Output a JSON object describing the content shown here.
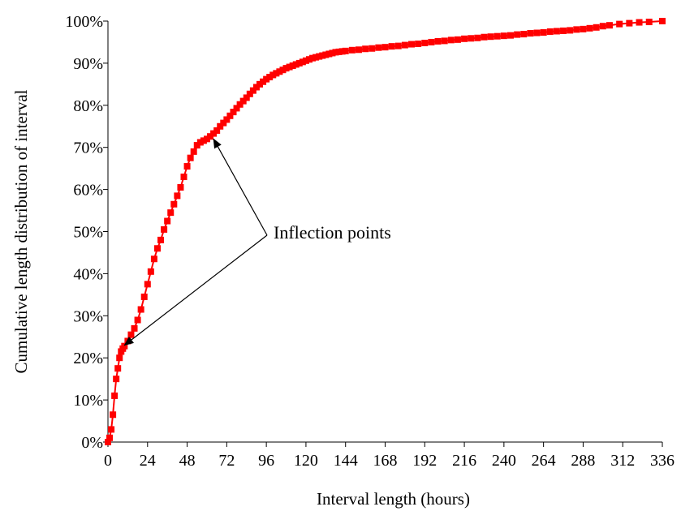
{
  "chart_data": {
    "type": "line",
    "title": "",
    "xlabel": "Interval length (hours)",
    "ylabel": "Cumulative length distribution of interval",
    "xlim": [
      0,
      336
    ],
    "ylim": [
      0,
      1
    ],
    "x_ticks": [
      0,
      24,
      48,
      72,
      96,
      120,
      144,
      168,
      192,
      216,
      240,
      264,
      288,
      312,
      336
    ],
    "x_tick_labels": [
      "0",
      "24",
      "48",
      "72",
      "96",
      "120",
      "144",
      "168",
      "192",
      "216",
      "240",
      "264",
      "288",
      "312",
      "336"
    ],
    "y_ticks": [
      0,
      0.1,
      0.2,
      0.3,
      0.4,
      0.5,
      0.6,
      0.7,
      0.8,
      0.9,
      1.0
    ],
    "y_tick_labels": [
      "0%",
      "10%",
      "20%",
      "30%",
      "40%",
      "50%",
      "60%",
      "70%",
      "80%",
      "90%",
      "100%"
    ],
    "grid": false,
    "legend": "none",
    "series_color": "#ff0000",
    "marker": "square",
    "series": [
      {
        "x": [
          0,
          1,
          2,
          3,
          4,
          5,
          6,
          7,
          8,
          9,
          10,
          12,
          14,
          16,
          18,
          20,
          22,
          24,
          26,
          28,
          30,
          32,
          34,
          36,
          38,
          40,
          42,
          44,
          46,
          48,
          50,
          52,
          54,
          56,
          58,
          60,
          62,
          64,
          66,
          68,
          70,
          72,
          74,
          76,
          78,
          80,
          82,
          84,
          86,
          88,
          90,
          92,
          94,
          96,
          98,
          100,
          102,
          104,
          106,
          108,
          110,
          112,
          114,
          116,
          118,
          120,
          122,
          124,
          126,
          128,
          130,
          132,
          134,
          136,
          138,
          140,
          142,
          144,
          148,
          152,
          156,
          160,
          164,
          168,
          172,
          176,
          180,
          184,
          188,
          192,
          196,
          200,
          204,
          208,
          212,
          216,
          220,
          224,
          228,
          232,
          236,
          240,
          244,
          248,
          252,
          256,
          260,
          264,
          268,
          272,
          276,
          280,
          284,
          288,
          292,
          296,
          300,
          304,
          310,
          316,
          322,
          328,
          336
        ],
        "y": [
          0.0,
          0.01,
          0.03,
          0.065,
          0.11,
          0.15,
          0.175,
          0.2,
          0.215,
          0.222,
          0.228,
          0.24,
          0.255,
          0.27,
          0.29,
          0.315,
          0.345,
          0.375,
          0.405,
          0.435,
          0.46,
          0.48,
          0.505,
          0.525,
          0.545,
          0.565,
          0.585,
          0.605,
          0.63,
          0.655,
          0.675,
          0.69,
          0.705,
          0.712,
          0.716,
          0.72,
          0.726,
          0.733,
          0.74,
          0.75,
          0.758,
          0.766,
          0.775,
          0.784,
          0.793,
          0.802,
          0.81,
          0.818,
          0.827,
          0.835,
          0.843,
          0.85,
          0.856,
          0.862,
          0.867,
          0.872,
          0.876,
          0.88,
          0.884,
          0.888,
          0.891,
          0.894,
          0.897,
          0.9,
          0.903,
          0.906,
          0.909,
          0.912,
          0.914,
          0.916,
          0.918,
          0.92,
          0.922,
          0.924,
          0.926,
          0.927,
          0.928,
          0.929,
          0.931,
          0.932,
          0.934,
          0.935,
          0.937,
          0.938,
          0.94,
          0.941,
          0.943,
          0.945,
          0.946,
          0.948,
          0.95,
          0.952,
          0.953,
          0.955,
          0.956,
          0.958,
          0.959,
          0.96,
          0.962,
          0.963,
          0.964,
          0.965,
          0.966,
          0.968,
          0.969,
          0.971,
          0.972,
          0.973,
          0.975,
          0.976,
          0.977,
          0.978,
          0.98,
          0.981,
          0.983,
          0.985,
          0.988,
          0.99,
          0.993,
          0.995,
          0.997,
          0.998,
          1.0
        ]
      }
    ],
    "annotations": [
      {
        "text": "Inflection points",
        "targets": [
          [
            10,
            0.23
          ],
          [
            64,
            0.72
          ]
        ]
      }
    ]
  }
}
